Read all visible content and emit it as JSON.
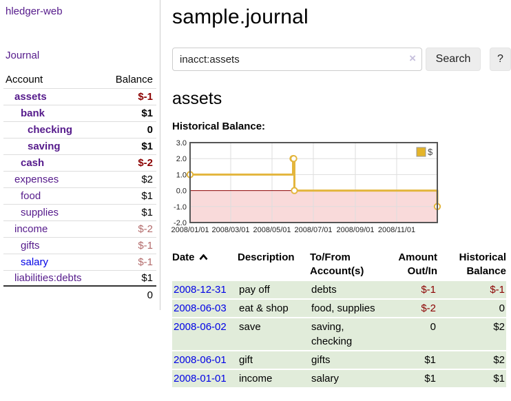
{
  "app": {
    "brand": "hledger-web",
    "nav_journal": "Journal"
  },
  "colors": {
    "link_purple": "#551a8b",
    "link_blue": "#0000e6",
    "neg_strong": "#8b0000",
    "neg_muted": "#b36b6b",
    "row_green": "#e1ecda",
    "accent_gold": "#e3b53c"
  },
  "sidebar": {
    "header": {
      "account": "Account",
      "balance": "Balance"
    },
    "accounts": [
      {
        "name": "assets",
        "balance": "$-1"
      },
      {
        "name": "bank",
        "balance": "$1"
      },
      {
        "name": "checking",
        "balance": "0"
      },
      {
        "name": "saving",
        "balance": "$1"
      },
      {
        "name": "cash",
        "balance": "$-2"
      },
      {
        "name": "expenses",
        "balance": "$2"
      },
      {
        "name": "food",
        "balance": "$1"
      },
      {
        "name": "supplies",
        "balance": "$1"
      },
      {
        "name": "income",
        "balance": "$-2"
      },
      {
        "name": "gifts",
        "balance": "$-1"
      },
      {
        "name": "salary",
        "balance": "$-1"
      },
      {
        "name": "liabilities:debts",
        "balance": "$1"
      }
    ],
    "total": "0"
  },
  "header": {
    "title": "sample.journal"
  },
  "search": {
    "value": "inacct:assets",
    "clear_icon": "×",
    "button": "Search",
    "help_button": "?"
  },
  "register": {
    "heading": "assets",
    "chart_label": "Historical Balance:"
  },
  "chart_data": {
    "type": "line",
    "title": "Historical Balance",
    "legend": [
      {
        "label": "$",
        "color": "#e4b429"
      }
    ],
    "legend_position": "top-right",
    "grid": true,
    "step": true,
    "ylim": [
      -2,
      3
    ],
    "y_ticks": [
      {
        "label": "3.0",
        "value": 3
      },
      {
        "label": "2.0",
        "value": 2
      },
      {
        "label": "1.0",
        "value": 1
      },
      {
        "label": "0.0",
        "value": 0
      },
      {
        "label": "-1.0",
        "value": -1
      },
      {
        "label": "-2.0",
        "value": -2
      }
    ],
    "x_range_days": 365,
    "x_ticks": [
      {
        "label": "2008/01/01",
        "day": 0
      },
      {
        "label": "2008/03/01",
        "day": 60
      },
      {
        "label": "2008/05/01",
        "day": 121
      },
      {
        "label": "2008/07/01",
        "day": 182
      },
      {
        "label": "2008/09/01",
        "day": 244
      },
      {
        "label": "2008/11/01",
        "day": 305
      }
    ],
    "points": [
      {
        "date": "2008-01-01",
        "day": 0,
        "value": 1
      },
      {
        "date": "2008-06-01",
        "day": 152,
        "value": 2
      },
      {
        "date": "2008-06-02",
        "day": 153,
        "value": 2
      },
      {
        "date": "2008-06-03",
        "day": 154,
        "value": 0
      },
      {
        "date": "2008-12-31",
        "day": 365,
        "value": -1
      }
    ],
    "colors": {
      "line": "#e3b53c",
      "marker_fill": "#ffffff",
      "zero_line": "#8b0000",
      "below_zero_fill": "#f9dada",
      "grid": "#dddddd",
      "border": "#555555",
      "label": "#222222"
    }
  },
  "table": {
    "headers": [
      {
        "l1": "Date",
        "l2": ""
      },
      {
        "l1": "Description",
        "l2": ""
      },
      {
        "l1": "To/From",
        "l2": "Account(s)"
      },
      {
        "l1": "Amount",
        "l2": "Out/In"
      },
      {
        "l1": "Historical",
        "l2": "Balance"
      }
    ],
    "sort_icon": "chevron-up",
    "rows": [
      {
        "date": "2008-12-31",
        "description": "pay off",
        "accounts": "debts",
        "amount": "$-1",
        "balance": "$-1"
      },
      {
        "date": "2008-06-03",
        "description": "eat & shop",
        "accounts": "food, supplies",
        "amount": "$-2",
        "balance": "0"
      },
      {
        "date": "2008-06-02",
        "description": "save",
        "accounts": "saving, checking",
        "amount": "0",
        "balance": "$2"
      },
      {
        "date": "2008-06-01",
        "description": "gift",
        "accounts": "gifts",
        "amount": "$1",
        "balance": "$2"
      },
      {
        "date": "2008-01-01",
        "description": "income",
        "accounts": "salary",
        "amount": "$1",
        "balance": "$1"
      }
    ]
  }
}
